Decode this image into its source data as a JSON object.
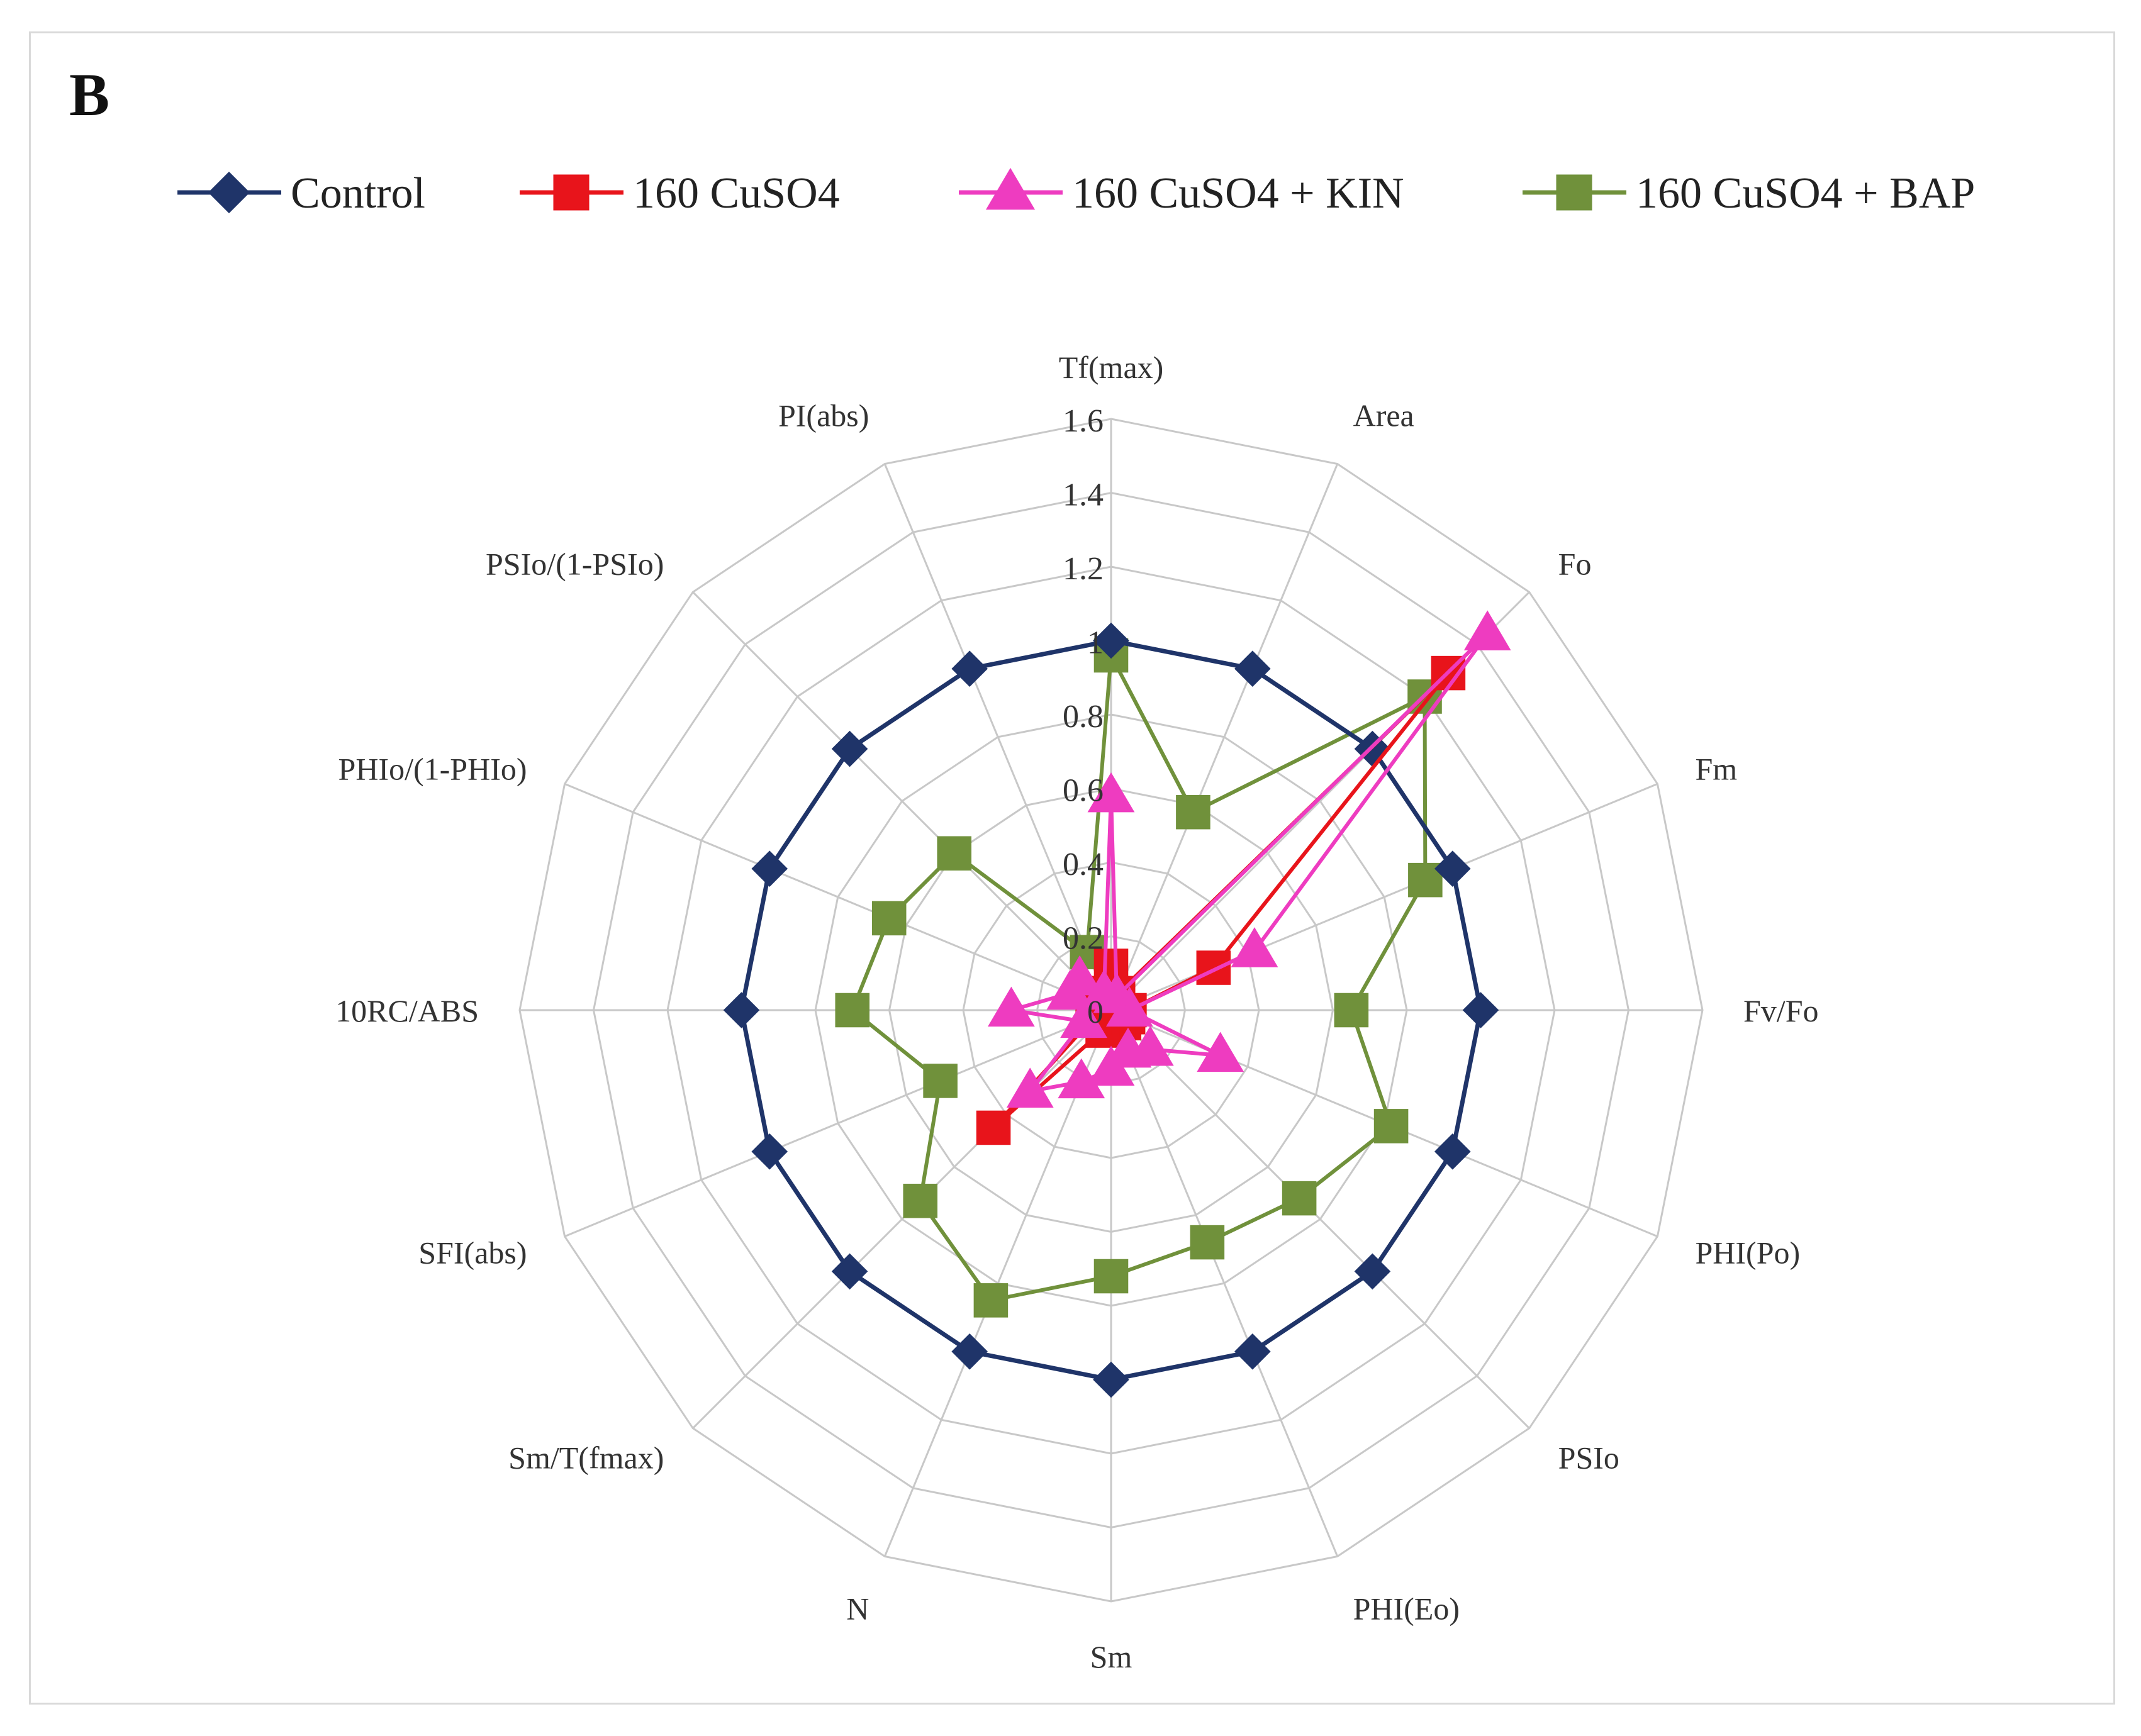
{
  "panel_label": "B",
  "chart_data": {
    "type": "radar",
    "axes": [
      "Tf(max)",
      "Area",
      "Fo",
      "Fm",
      "Fv/Fo",
      "PHI(Po)",
      "PSIo",
      "PHI(Eo)",
      "Sm",
      "N",
      "Sm/T(fmax)",
      "SFI(abs)",
      "10RC/ABS",
      "PHIo/(1-PHIo)",
      "PSIo/(1-PSIo)",
      "PI(abs)"
    ],
    "range": [
      0,
      1.6
    ],
    "ticks": [
      "0",
      "0.2",
      "0.4",
      "0.6",
      "0.8",
      "1",
      "1.2",
      "1.4",
      "1.6"
    ],
    "tick_values": [
      0,
      0.2,
      0.4,
      0.6,
      0.8,
      1.0,
      1.2,
      1.4,
      1.6
    ],
    "grid": true,
    "legend_position": "top",
    "series": [
      {
        "name": "Control",
        "color": "#1f3469",
        "marker": "diamond",
        "values": [
          1,
          1,
          1,
          1,
          1,
          1,
          1,
          1,
          1,
          1,
          1,
          1,
          1,
          1,
          1,
          1
        ]
      },
      {
        "name": "160 CuSO4",
        "color": "#e8141b",
        "marker": "square",
        "values": [
          0.12,
          0.05,
          1.29,
          0.3,
          0.05,
          0.05,
          0.05,
          0.05,
          0.04,
          0.06,
          0.45,
          0.05,
          0.05,
          0.05,
          0.05,
          0.05
        ]
      },
      {
        "name": "160 CuSO4 + KIN",
        "color": "#ee3cc0",
        "marker": "triangle",
        "values": [
          0.58,
          0.04,
          1.44,
          0.42,
          0.05,
          0.32,
          0.15,
          0.12,
          0.16,
          0.21,
          0.31,
          0.08,
          0.27,
          0.12,
          0.12,
          0.05
        ]
      },
      {
        "name": "160 CuSO4 + BAP",
        "color": "#70913b",
        "marker": "square",
        "values": [
          0.96,
          0.58,
          1.2,
          0.92,
          0.65,
          0.82,
          0.72,
          0.68,
          0.72,
          0.85,
          0.73,
          0.5,
          0.7,
          0.65,
          0.6,
          0.17
        ]
      }
    ]
  }
}
